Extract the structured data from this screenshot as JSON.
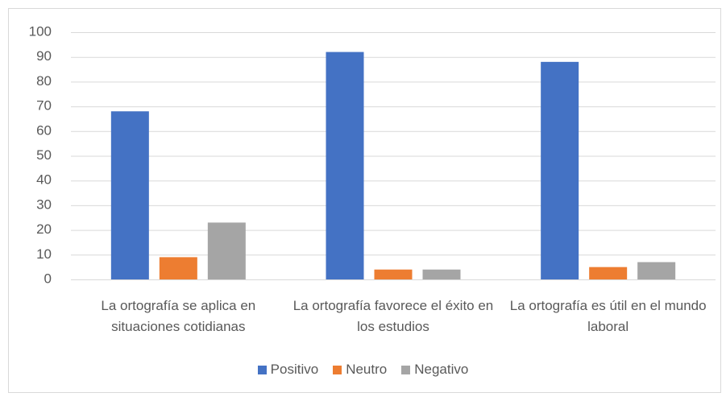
{
  "chart_data": {
    "type": "bar",
    "categories": [
      "La ortografía se aplica en situaciones cotidianas",
      "La ortografía favorece el éxito en los estudios",
      "La ortografía es útil en el mundo laboral"
    ],
    "series": [
      {
        "name": "Positivo",
        "color": "#4472c4",
        "values": [
          68,
          92,
          88
        ]
      },
      {
        "name": "Neutro",
        "color": "#ed7d31",
        "values": [
          9,
          4,
          5
        ]
      },
      {
        "name": "Negativo",
        "color": "#a5a5a5",
        "values": [
          23,
          4,
          7
        ]
      }
    ],
    "ylim": [
      0,
      100
    ],
    "yticks": [
      0,
      10,
      20,
      30,
      40,
      50,
      60,
      70,
      80,
      90,
      100
    ],
    "grid": true,
    "legend": "bottom"
  }
}
